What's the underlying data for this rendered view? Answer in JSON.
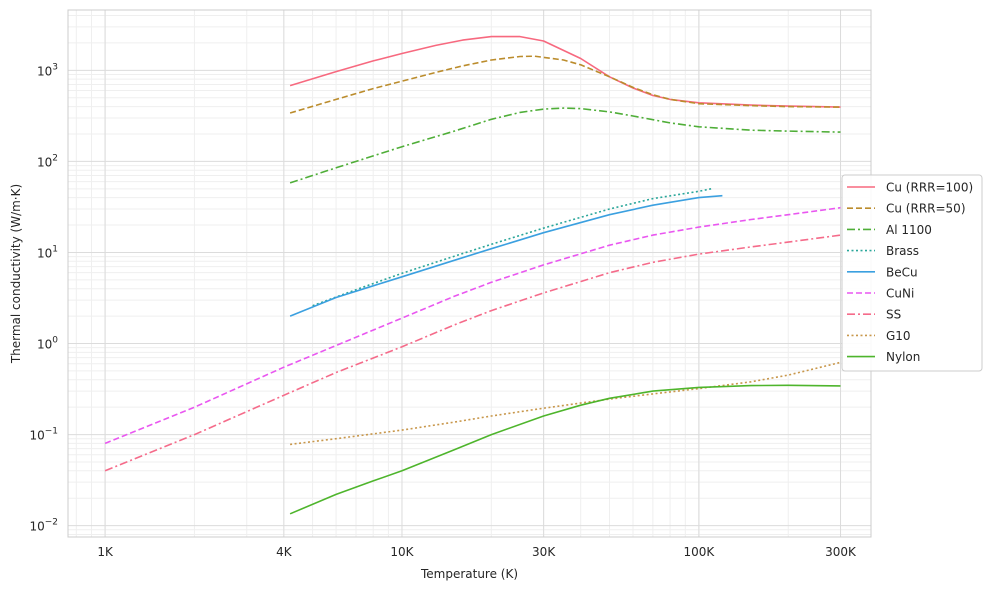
{
  "chart_data": {
    "type": "line",
    "title": "",
    "xlabel": "Temperature (K)",
    "ylabel": "Thermal conductivity (W/m·K)",
    "xscale": "log",
    "yscale": "log",
    "xlim": [
      0.75,
      380
    ],
    "ylim": [
      0.0075,
      4600
    ],
    "x_ticks": [
      {
        "value": 1,
        "label": "1K"
      },
      {
        "value": 4,
        "label": "4K"
      },
      {
        "value": 10,
        "label": "10K"
      },
      {
        "value": 30,
        "label": "30K"
      },
      {
        "value": 100,
        "label": "100K"
      },
      {
        "value": 300,
        "label": "300K"
      }
    ],
    "y_ticks": [
      {
        "value": 0.01,
        "base": "10",
        "exp": "−2"
      },
      {
        "value": 0.1,
        "base": "10",
        "exp": "−1"
      },
      {
        "value": 1,
        "base": "10",
        "exp": "0"
      },
      {
        "value": 10,
        "base": "10",
        "exp": "1"
      },
      {
        "value": 100,
        "base": "10",
        "exp": "2"
      },
      {
        "value": 1000,
        "base": "10",
        "exp": "3"
      }
    ],
    "grid": true,
    "legend_position": "center-right",
    "series": [
      {
        "name": "Cu (RRR=100)",
        "color": "#f7697f",
        "dash": "solid",
        "x": [
          4.2,
          6,
          8,
          10,
          13,
          16,
          20,
          25,
          30,
          40,
          50,
          60,
          70,
          80,
          100,
          150,
          200,
          300
        ],
        "y": [
          680,
          970,
          1270,
          1530,
          1880,
          2150,
          2350,
          2350,
          2100,
          1350,
          850,
          640,
          530,
          480,
          440,
          415,
          405,
          395
        ]
      },
      {
        "name": "Cu (RRR=50)",
        "color": "#bb8c2c",
        "dash": "dashed",
        "x": [
          4.2,
          6,
          8,
          10,
          13,
          16,
          20,
          25,
          28,
          35,
          40,
          50,
          60,
          70,
          80,
          100,
          150,
          200,
          300
        ],
        "y": [
          340,
          480,
          630,
          760,
          950,
          1120,
          1300,
          1420,
          1430,
          1300,
          1150,
          850,
          650,
          540,
          480,
          430,
          410,
          400,
          395
        ]
      },
      {
        "name": "Al 1100",
        "color": "#4fae38",
        "dash": "dashdot",
        "x": [
          4.2,
          6,
          8,
          10,
          15,
          20,
          25,
          30,
          35,
          40,
          50,
          60,
          80,
          100,
          150,
          200,
          300
        ],
        "y": [
          58,
          85,
          115,
          145,
          215,
          290,
          345,
          375,
          385,
          380,
          350,
          315,
          265,
          240,
          220,
          215,
          210
        ]
      },
      {
        "name": "Brass",
        "color": "#2aa69a",
        "dash": "dotted",
        "x": [
          5,
          7,
          10,
          15,
          20,
          30,
          50,
          70,
          100,
          110
        ],
        "y": [
          2.6,
          3.9,
          5.9,
          9.1,
          12.3,
          18.5,
          30,
          39,
          47,
          50
        ]
      },
      {
        "name": "BeCu",
        "color": "#3ba0e0",
        "dash": "solid",
        "x": [
          4.2,
          6,
          8,
          10,
          15,
          20,
          30,
          50,
          70,
          100,
          120
        ],
        "y": [
          2.0,
          3.2,
          4.3,
          5.4,
          8.2,
          11,
          16.5,
          26,
          33,
          40,
          42
        ]
      },
      {
        "name": "CuNi",
        "color": "#e957f0",
        "dash": "dashed",
        "x": [
          1,
          2,
          4,
          6,
          10,
          15,
          20,
          30,
          50,
          70,
          100,
          150,
          200,
          300
        ],
        "y": [
          0.08,
          0.2,
          0.55,
          0.95,
          1.9,
          3.3,
          4.7,
          7.3,
          12,
          15.5,
          19,
          23,
          26,
          31
        ]
      },
      {
        "name": "SS",
        "color": "#f56b8a",
        "dash": "dashdot",
        "x": [
          1,
          2,
          4,
          6,
          10,
          15,
          20,
          30,
          50,
          70,
          100,
          150,
          200,
          300
        ],
        "y": [
          0.04,
          0.1,
          0.27,
          0.48,
          0.92,
          1.6,
          2.3,
          3.6,
          6,
          7.8,
          9.6,
          11.5,
          13,
          15.5
        ]
      },
      {
        "name": "G10",
        "color": "#c8974b",
        "dash": "dotted",
        "x": [
          4.2,
          6,
          10,
          15,
          20,
          30,
          50,
          70,
          100,
          150,
          200,
          300
        ],
        "y": [
          0.078,
          0.09,
          0.112,
          0.137,
          0.16,
          0.195,
          0.245,
          0.28,
          0.32,
          0.38,
          0.45,
          0.62
        ]
      },
      {
        "name": "Nylon",
        "color": "#4eb52c",
        "dash": "solid",
        "x": [
          4.2,
          6,
          8,
          10,
          15,
          20,
          30,
          40,
          50,
          70,
          100,
          150,
          200,
          300
        ],
        "y": [
          0.0135,
          0.022,
          0.031,
          0.04,
          0.068,
          0.1,
          0.16,
          0.21,
          0.25,
          0.3,
          0.33,
          0.345,
          0.348,
          0.342
        ]
      }
    ]
  }
}
